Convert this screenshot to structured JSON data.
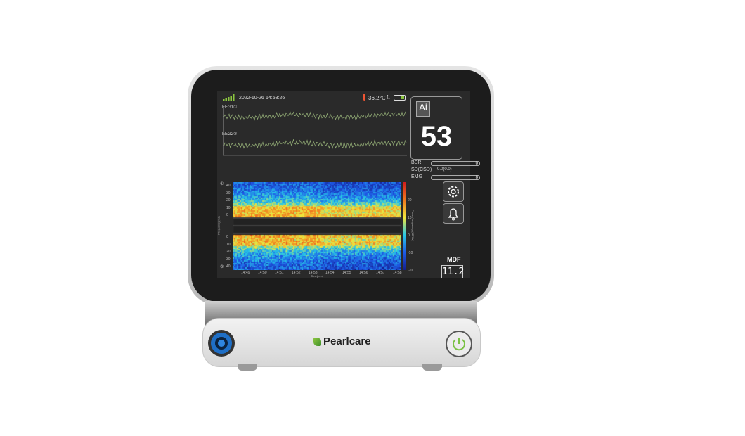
{
  "device": {
    "brand": "Pearlcare",
    "accent": "#8cc63f"
  },
  "status": {
    "date": "2022-10-26",
    "time": "14:58:26",
    "temperature": "36.2℃",
    "icons": [
      "signal-icon",
      "thermometer-icon",
      "sync-arrows-icon",
      "battery-icon"
    ]
  },
  "eeg": {
    "channel1": "EEG1",
    "channel2": "EEG2",
    "channel1_badge": "①",
    "channel2_badge": "②"
  },
  "index": {
    "logo": "Ai",
    "value": "53"
  },
  "params": [
    {
      "label": "BSR",
      "value": "0"
    },
    {
      "label": "SD(CSD)",
      "value": "0.0(0.0)"
    },
    {
      "label": "EMG",
      "value": "0"
    }
  ],
  "spectrogram": {
    "y_ticks": [
      "40",
      "30",
      "20",
      "10",
      "0"
    ],
    "y_label": "Frequency(Hz)",
    "x_ticks": [
      "14:49",
      "14:50",
      "14:51",
      "14:52",
      "14:53",
      "14:54",
      "14:55",
      "14:56",
      "14:57",
      "14:58"
    ],
    "x_label": "Time(h:m)",
    "colorbar_ticks": [
      "20",
      "10",
      "0",
      "-10",
      "-20"
    ],
    "colorbar_label": "Power/frequency (dB/Hz)"
  },
  "mdf": {
    "label": "MDF",
    "value": "11.2"
  }
}
